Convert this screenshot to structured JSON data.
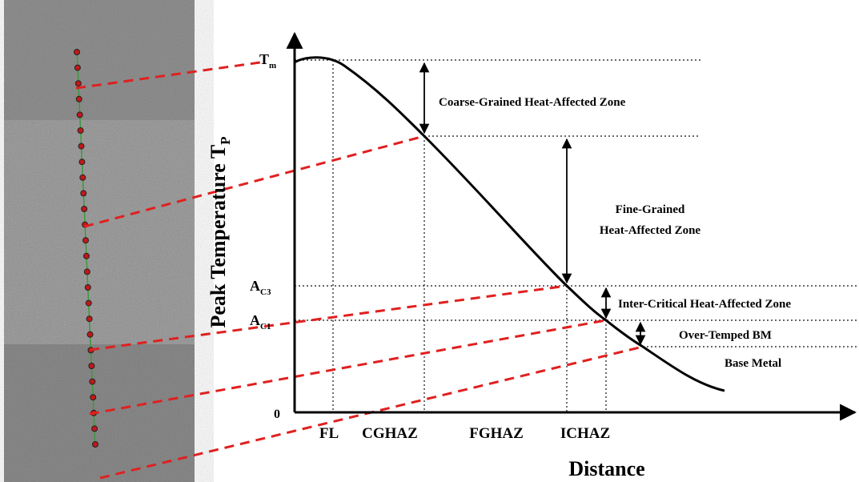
{
  "y_axis": {
    "label": {
      "main": "Peak Temperature T",
      "sub": "P"
    },
    "levels": [
      {
        "main": "T",
        "sub": "m"
      },
      {
        "main": "A",
        "sub": "C3"
      },
      {
        "main": "A",
        "sub": "C1"
      },
      {
        "main": "0"
      }
    ]
  },
  "x_axis": {
    "label": "Distance",
    "zones": [
      "FL",
      "CGHAZ",
      "FGHAZ",
      "ICHAZ"
    ]
  },
  "annotations": [
    "Coarse-Grained Heat-Affected Zone",
    "Fine-Grained",
    "Heat-Affected Zone",
    "Inter-Critical Heat-Affected Zone",
    "Over-Temped BM",
    "Base Metal"
  ]
}
